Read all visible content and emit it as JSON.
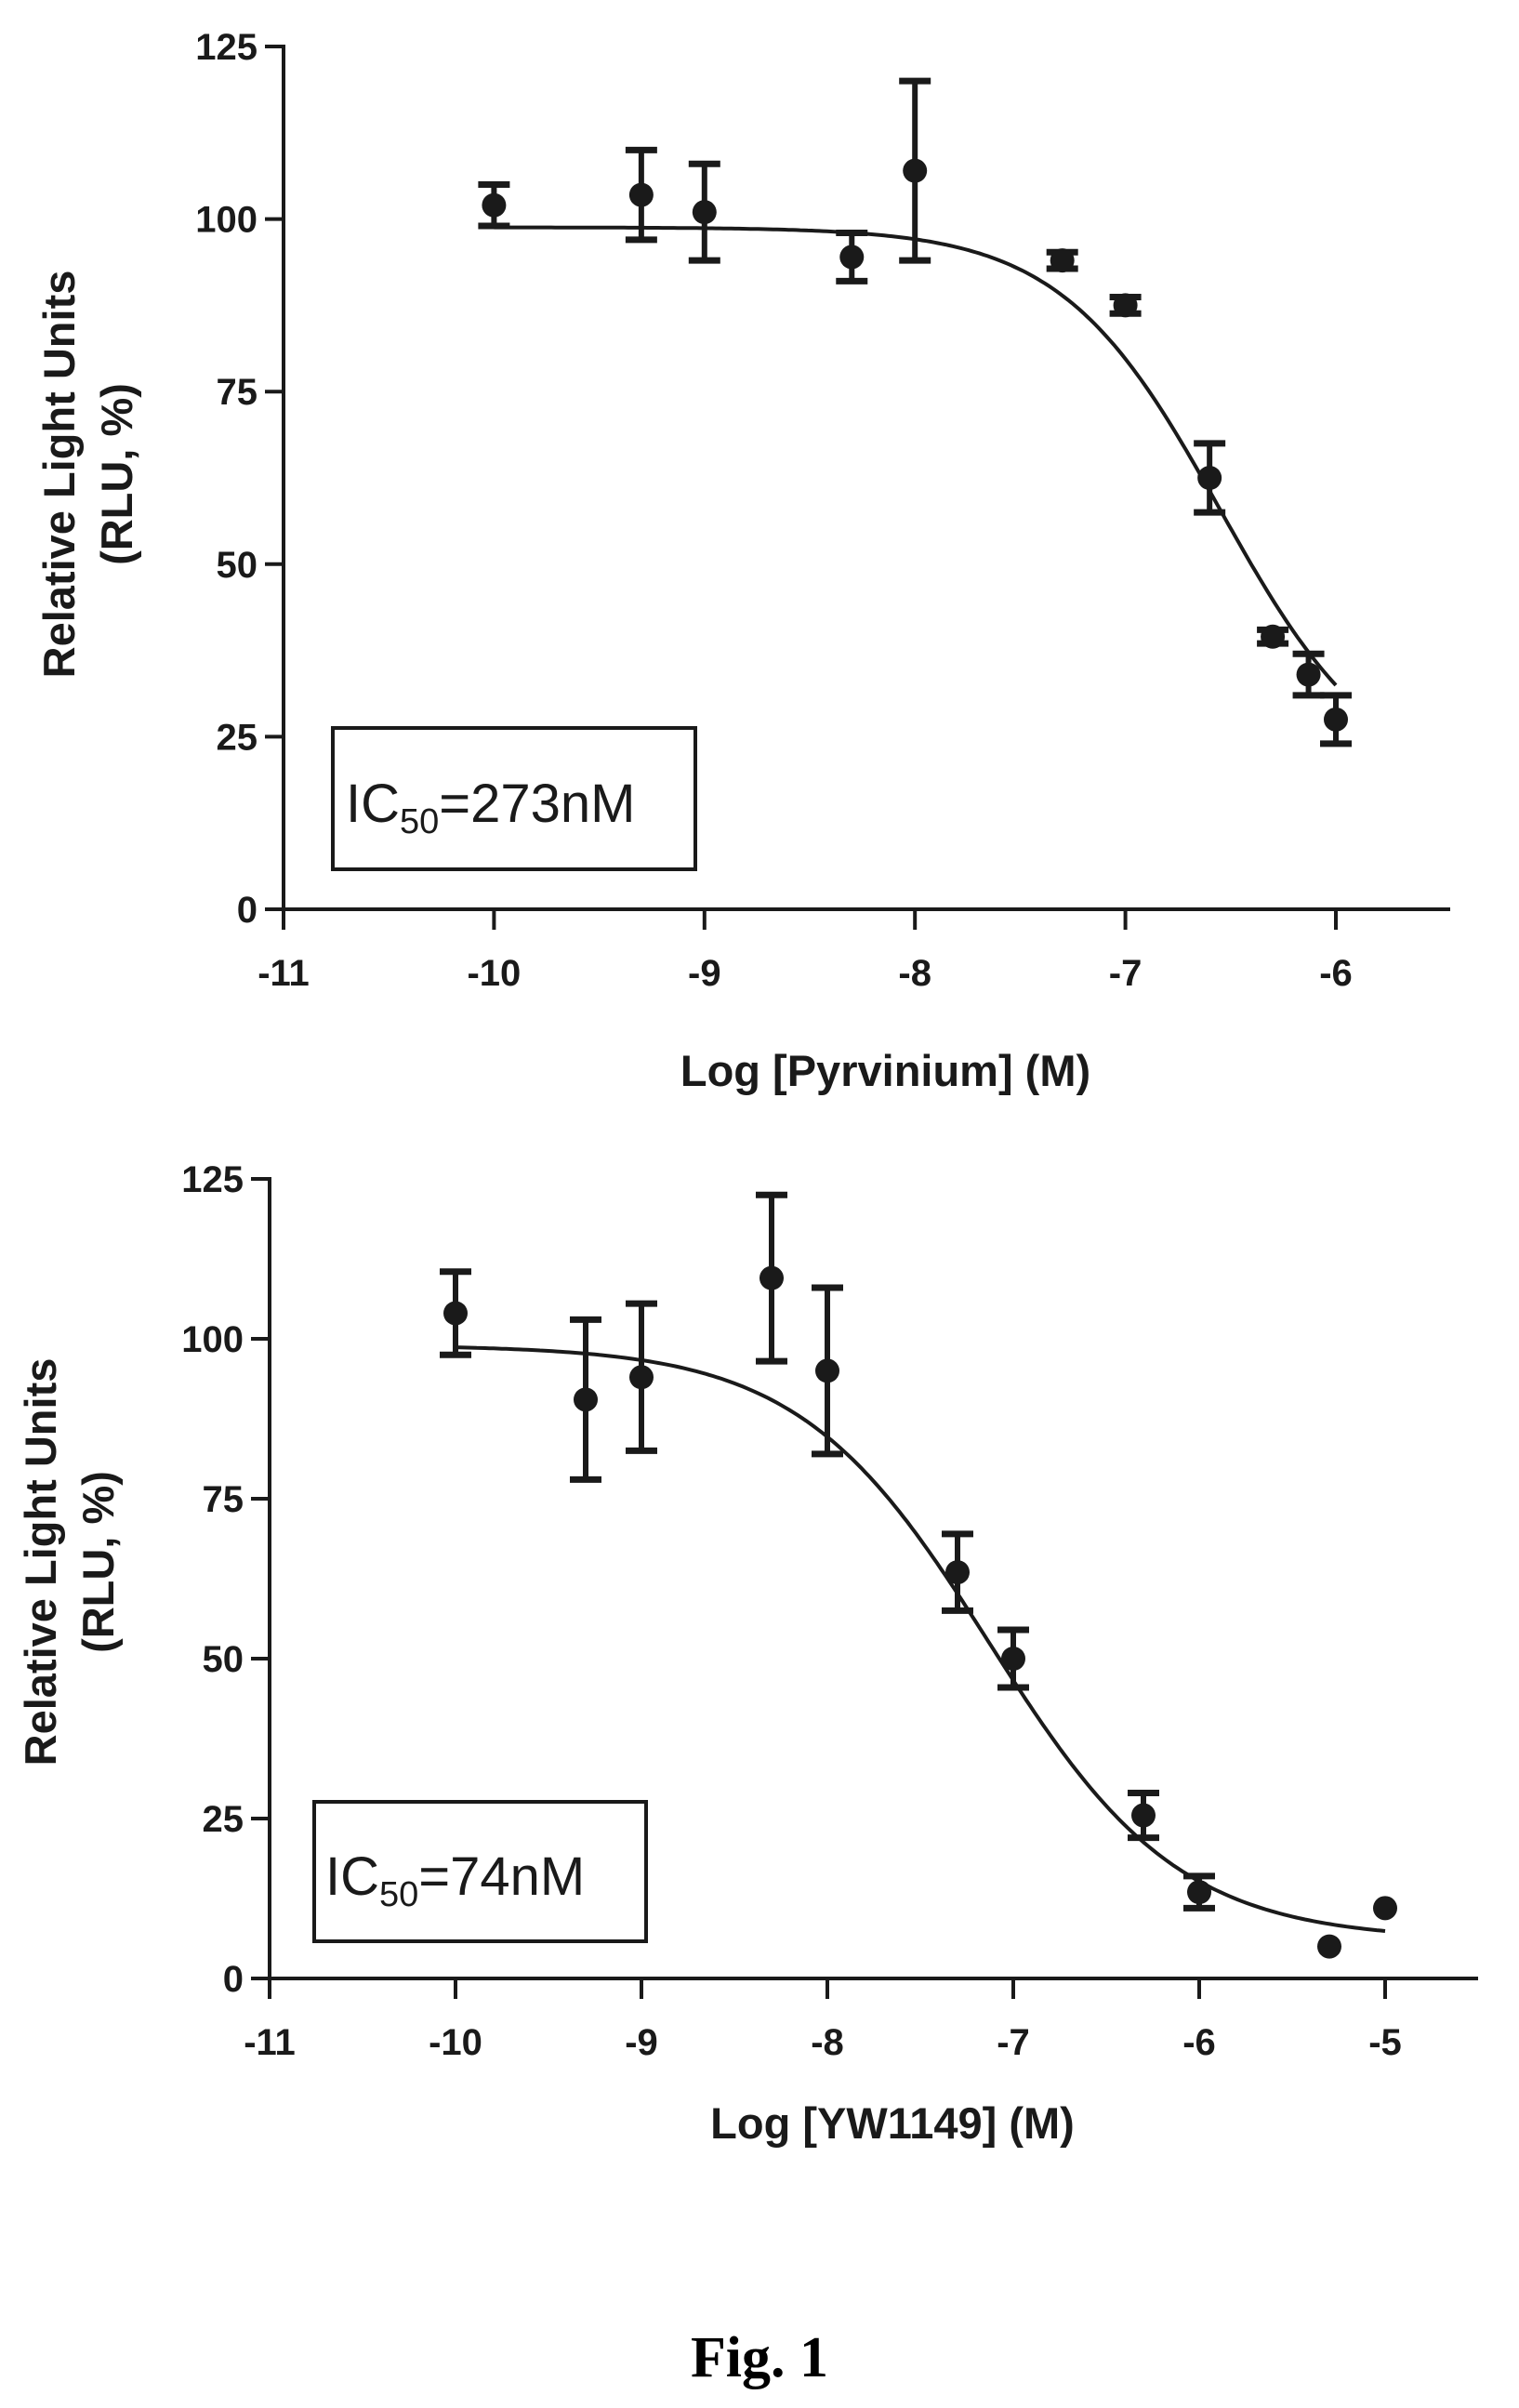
{
  "figure_label": "Fig. 1",
  "chart_data": [
    {
      "type": "scatter",
      "title": "",
      "xlabel": "Log [Pyrvinium] (M)",
      "ylabel": [
        "Relative Light Units",
        "(RLU, %)"
      ],
      "xlim": [
        -11,
        -5.5
      ],
      "ylim": [
        0,
        125
      ],
      "xticks": [
        -11,
        -10,
        -9,
        -8,
        -7,
        -6
      ],
      "yticks": [
        0,
        25,
        50,
        75,
        100,
        125
      ],
      "grid": false,
      "annotation": {
        "prefix": "IC",
        "subscript": "50",
        "suffix": "=273nM"
      },
      "fit": {
        "top": 98.8,
        "bottom": 17,
        "log_ic50": -6.55,
        "hill": -1.15,
        "x_range": [
          -10,
          -6
        ]
      },
      "series": [
        {
          "x": [
            -10,
            -9.3,
            -9,
            -8.3,
            -8,
            -7.3,
            -7,
            -6.6,
            -6.3,
            -6.13,
            -6
          ],
          "y": [
            102,
            103.5,
            101,
            94.5,
            107,
            94,
            87.5,
            62.5,
            39.5,
            34,
            27.5
          ],
          "err": [
            3,
            6.5,
            7,
            3.5,
            13,
            1.2,
            1.2,
            5,
            1,
            3,
            3.5
          ]
        }
      ]
    },
    {
      "type": "scatter",
      "title": "",
      "xlabel": "Log [YW1149] (M)",
      "ylabel": [
        "Relative Light Units",
        "(RLU, %)"
      ],
      "xlim": [
        -11,
        -4.5
      ],
      "ylim": [
        0,
        125
      ],
      "xticks": [
        -11,
        -10,
        -9,
        -8,
        -7,
        -6,
        -5
      ],
      "yticks": [
        0,
        25,
        50,
        75,
        100,
        125
      ],
      "grid": false,
      "annotation": {
        "prefix": "IC",
        "subscript": "50",
        "suffix": "=74nM"
      },
      "fit": {
        "top": 99,
        "bottom": 6,
        "log_ic50": -7.13,
        "hill": -0.85,
        "x_range": [
          -10,
          -5
        ]
      },
      "series": [
        {
          "x": [
            -10,
            -9.3,
            -9,
            -8.3,
            -8,
            -7.3,
            -7,
            -6.3,
            -6,
            -5.3,
            -5
          ],
          "y": [
            104,
            90.5,
            94,
            109.5,
            95,
            63.5,
            50,
            25.5,
            13.5,
            5,
            11
          ],
          "err": [
            6.5,
            12.5,
            11.5,
            13,
            13,
            6,
            4.5,
            3.5,
            2.5,
            0,
            0
          ]
        }
      ]
    }
  ]
}
